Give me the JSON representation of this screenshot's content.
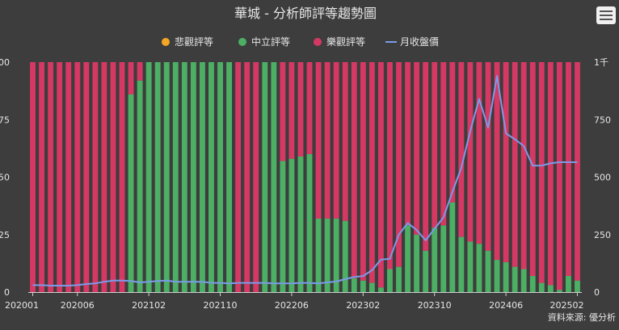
{
  "title": "華城 - 分析師評等趨勢圖",
  "source": "資料來源: 優分析",
  "menu_icon": "hamburger-menu-icon",
  "legend": [
    {
      "name": "悲觀評等",
      "color": "#f5a623",
      "shape": "circle"
    },
    {
      "name": "中立評等",
      "color": "#4caf64",
      "shape": "circle"
    },
    {
      "name": "樂觀評等",
      "color": "#d63864",
      "shape": "circle"
    },
    {
      "name": "月收盤價",
      "color": "#7b9be8",
      "shape": "line"
    }
  ],
  "chart_data": {
    "type": "bar",
    "stacked": true,
    "categories": [
      "202001",
      "202002",
      "202003",
      "202004",
      "202005",
      "202006",
      "202007",
      "202008",
      "202009",
      "202010",
      "202011",
      "202012",
      "202101",
      "202102",
      "202103",
      "202104",
      "202105",
      "202106",
      "202107",
      "202108",
      "202109",
      "202110",
      "202111",
      "202112",
      "202201",
      "202202",
      "202203",
      "202204",
      "202205",
      "202206",
      "202207",
      "202208",
      "202209",
      "202210",
      "202211",
      "202212",
      "202301",
      "202302",
      "202303",
      "202304",
      "202305",
      "202306",
      "202307",
      "202308",
      "202309",
      "202310",
      "202311",
      "202312",
      "202401",
      "202402",
      "202403",
      "202404",
      "202405",
      "202406",
      "202407",
      "202408",
      "202409",
      "202410",
      "202411",
      "202412",
      "202501",
      "202502"
    ],
    "x_tick_labels": [
      "202001",
      "202006",
      "202102",
      "202110",
      "202206",
      "202302",
      "202310",
      "202406",
      "202502"
    ],
    "series": [
      {
        "name": "悲觀評等",
        "axis": "left",
        "values": [
          0,
          0,
          0,
          0,
          0,
          0,
          0,
          0,
          0,
          0,
          0,
          0,
          0,
          0,
          0,
          0,
          0,
          0,
          0,
          0,
          0,
          0,
          0,
          0,
          0,
          0,
          0,
          0,
          0,
          0,
          0,
          0,
          0,
          0,
          0,
          0,
          0,
          0,
          0,
          0,
          0,
          0,
          0,
          0,
          0,
          0,
          0,
          0,
          0,
          0,
          0,
          0,
          0,
          0,
          0,
          0,
          0,
          0,
          0,
          0,
          0,
          0
        ]
      },
      {
        "name": "中立評等",
        "axis": "left",
        "values": [
          0,
          0,
          0,
          0,
          0,
          0,
          0,
          0,
          0,
          0,
          0,
          86,
          92,
          100,
          100,
          100,
          100,
          100,
          100,
          100,
          100,
          100,
          100,
          0,
          0,
          0,
          100,
          100,
          57,
          58,
          59,
          60,
          32,
          32,
          32,
          31,
          6,
          5,
          4,
          2,
          10,
          11,
          29,
          25,
          18,
          28,
          29,
          39,
          24,
          22,
          21,
          18,
          14,
          13,
          11,
          10,
          7,
          4,
          3,
          1,
          7,
          5
        ]
      },
      {
        "name": "樂觀評等",
        "axis": "left",
        "values": [
          100,
          100,
          100,
          100,
          100,
          100,
          100,
          100,
          100,
          100,
          100,
          14,
          8,
          0,
          0,
          0,
          0,
          0,
          0,
          0,
          0,
          0,
          0,
          100,
          100,
          100,
          0,
          0,
          43,
          42,
          41,
          40,
          68,
          68,
          68,
          69,
          94,
          95,
          96,
          98,
          90,
          89,
          71,
          75,
          82,
          72,
          71,
          61,
          76,
          78,
          79,
          82,
          86,
          87,
          89,
          90,
          93,
          96,
          97,
          99,
          93,
          95
        ]
      },
      {
        "name": "月收盤價",
        "axis": "right",
        "type": "line",
        "values": [
          30,
          30,
          28,
          28,
          28,
          30,
          35,
          38,
          45,
          50,
          50,
          48,
          42,
          45,
          48,
          50,
          45,
          45,
          45,
          45,
          40,
          40,
          38,
          40,
          40,
          40,
          40,
          38,
          38,
          38,
          40,
          40,
          38,
          42,
          46,
          56,
          66,
          70,
          95,
          141,
          145,
          250,
          300,
          270,
          225,
          275,
          325,
          435,
          540,
          700,
          840,
          715,
          940,
          690,
          665,
          635,
          550,
          550,
          560,
          565,
          565,
          565
        ]
      }
    ],
    "y_left": {
      "min": 0,
      "max": 100,
      "ticks": [
        0,
        25,
        50,
        75,
        100
      ],
      "tick_labels": [
        "0",
        "25",
        "50",
        "75",
        "100"
      ]
    },
    "y_right": {
      "min": 0,
      "max": 1000,
      "ticks": [
        0,
        250,
        500,
        750,
        1000
      ],
      "tick_labels": [
        "0",
        "250",
        "500",
        "750",
        "1千"
      ]
    },
    "grid": false,
    "legend_position": "top-center"
  }
}
